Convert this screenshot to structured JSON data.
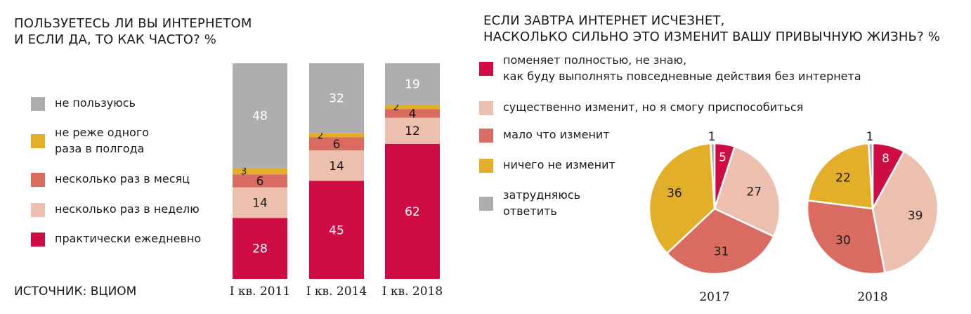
{
  "left": {
    "title_line1": "ПОЛЬЗУЕТЕСЬ ЛИ ВЫ ИНТЕРНЕТОМ",
    "title_line2": "И ЕСЛИ ДА, ТО КАК ЧАСТО? %"
  },
  "right": {
    "title_line1": "ЕСЛИ ЗАВТРА ИНТЕРНЕТ ИСЧЕЗНЕТ,",
    "title_line2": "НАСКОЛЬКО СИЛЬНО ЭТО ИЗМЕНИТ ВАШУ ПРИВЫЧНУЮ ЖИЗНЬ? %"
  },
  "source": "ИСТОЧНИК: ВЦИОМ",
  "colors": {
    "gray": "#aeaeb1",
    "yellow": "#e3ae28",
    "coral": "#d96b61",
    "pink": "#edbfae",
    "crimson": "#cf0c43"
  },
  "chart_data": [
    {
      "type": "bar",
      "stacked": true,
      "title": "ПОЛЬЗУЕТЕСЬ ЛИ ВЫ ИНТЕРНЕТОМ И ЕСЛИ ДА, ТО КАК ЧАСТО? %",
      "categories": [
        "I кв. 2011",
        "I кв. 2014",
        "I кв. 2018"
      ],
      "series": [
        {
          "name": "практически ежедневно",
          "color": "#cf0c43",
          "label_color": "#ffffff",
          "values": [
            28,
            45,
            62
          ]
        },
        {
          "name": "несколько раз в неделю",
          "color": "#edbfae",
          "label_color": "#1a1a1a",
          "values": [
            14,
            14,
            12
          ]
        },
        {
          "name": "несколько раз в месяц",
          "color": "#d96b61",
          "label_color": "#1a1a1a",
          "values": [
            6,
            6,
            4
          ]
        },
        {
          "name": "не реже одного раза в полгода",
          "color": "#e3ae28",
          "label_color": "#1a1a1a",
          "values": [
            3,
            2,
            2
          ]
        },
        {
          "name": "не пользуюсь",
          "color": "#aeaeb1",
          "label_color": "#ffffff",
          "values": [
            48,
            32,
            19
          ]
        }
      ],
      "legend": [
        {
          "label_lines": [
            "не пользуюсь"
          ],
          "color": "#aeaeb1"
        },
        {
          "label_lines": [
            "не реже одного",
            "раза в полгода"
          ],
          "color": "#e3ae28"
        },
        {
          "label_lines": [
            "несколько раз в месяц"
          ],
          "color": "#d96b61"
        },
        {
          "label_lines": [
            "несколько раз в неделю"
          ],
          "color": "#edbfae"
        },
        {
          "label_lines": [
            "практически ежедневно"
          ],
          "color": "#cf0c43"
        }
      ]
    },
    {
      "type": "pie",
      "title": "ЕСЛИ ЗАВТРА ИНТЕРНЕТ ИСЧЕЗНЕТ, НАСКОЛЬКО СИЛЬНО ЭТО ИЗМЕНИТ ВАШУ ПРИВЫЧНУЮ ЖИЗНЬ? %",
      "legend": [
        {
          "label_lines": [
            "поменяет полностью, не знаю,",
            "как буду выполнять повседневные действия без интернета"
          ],
          "color": "#cf0c43"
        },
        {
          "label_lines": [
            "существенно изменит, но я смогу приспособиться"
          ],
          "color": "#edbfae"
        },
        {
          "label_lines": [
            "мало что изменит"
          ],
          "color": "#d96b61"
        },
        {
          "label_lines": [
            "ничего не изменит"
          ],
          "color": "#e3ae28"
        },
        {
          "label_lines": [
            "затрудняюсь",
            "ответить"
          ],
          "color": "#aeaeb1"
        }
      ],
      "pies": [
        {
          "label": "2017",
          "slices": [
            {
              "name": "поменяет полностью",
              "value": 5,
              "color": "#cf0c43"
            },
            {
              "name": "существенно изменит",
              "value": 27,
              "color": "#edbfae"
            },
            {
              "name": "мало что изменит",
              "value": 31,
              "color": "#d96b61"
            },
            {
              "name": "ничего не изменит",
              "value": 36,
              "color": "#e3ae28"
            },
            {
              "name": "затрудняюсь ответить",
              "value": 1,
              "color": "#aeaeb1"
            }
          ]
        },
        {
          "label": "2018",
          "slices": [
            {
              "name": "поменяет полностью",
              "value": 8,
              "color": "#cf0c43"
            },
            {
              "name": "существенно изменит",
              "value": 39,
              "color": "#edbfae"
            },
            {
              "name": "мало что изменит",
              "value": 30,
              "color": "#d96b61"
            },
            {
              "name": "ничего не изменит",
              "value": 22,
              "color": "#e3ae28"
            },
            {
              "name": "затрудняюсь ответить",
              "value": 1,
              "color": "#aeaeb1"
            }
          ]
        }
      ]
    }
  ]
}
